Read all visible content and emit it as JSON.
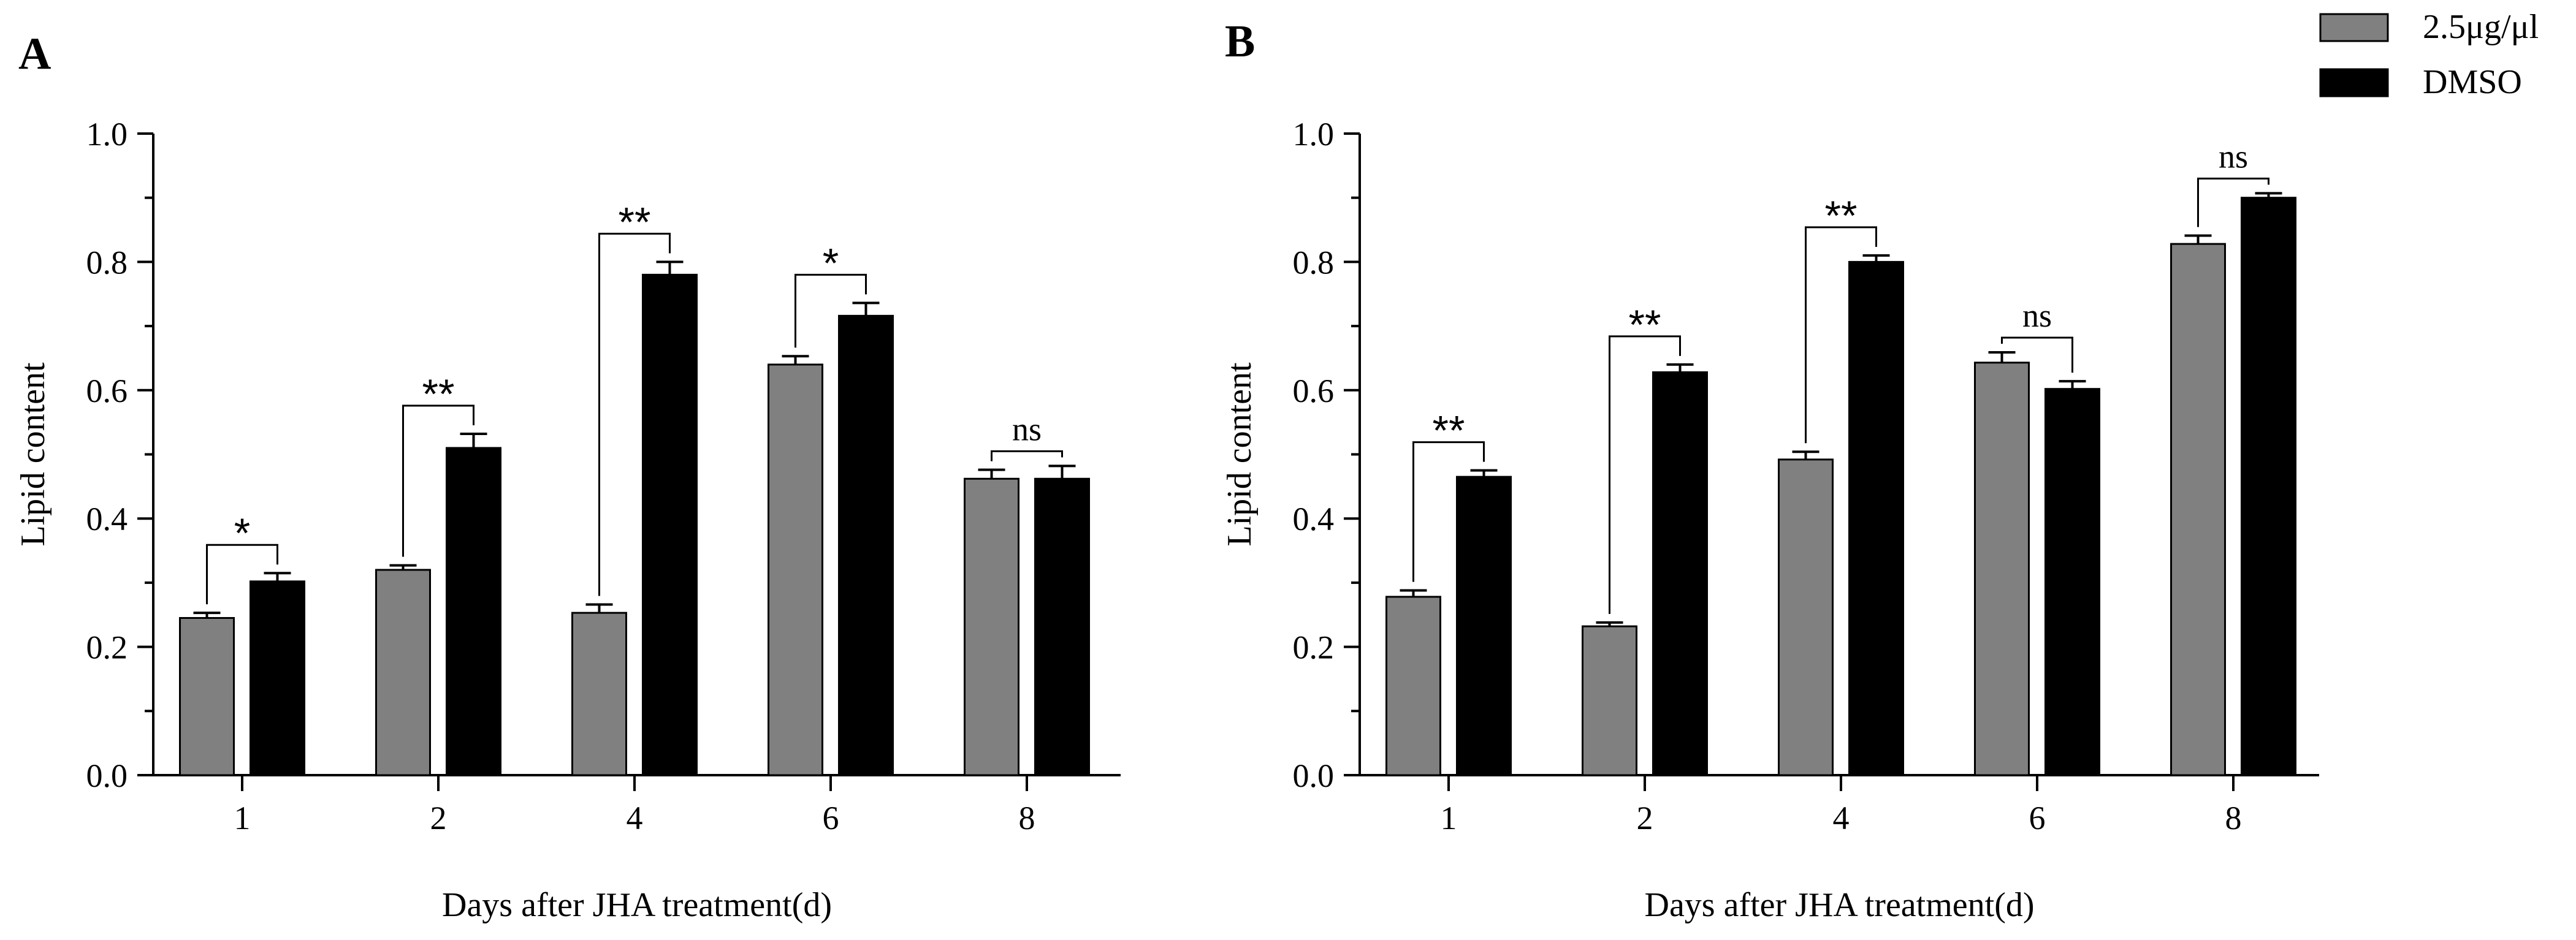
{
  "colors": {
    "treatment": "#808080",
    "control": "#000000",
    "axis": "#000000"
  },
  "legend": {
    "entries": [
      {
        "label": "2.5μg/μl",
        "color": "#808080"
      },
      {
        "label": "DMSO",
        "color": "#000000"
      }
    ],
    "placement": "top-right"
  },
  "chart_data": [
    {
      "type": "bar",
      "panel_label": "A",
      "title": "",
      "xlabel": "Days after JHA treatment(d)",
      "ylabel": "Lipid content",
      "ylim": [
        0,
        1.0
      ],
      "yticks": [
        "0.0",
        "0.2",
        "0.4",
        "0.6",
        "0.8",
        "1.0"
      ],
      "categories": [
        "1",
        "2",
        "4",
        "6",
        "8"
      ],
      "series": [
        {
          "name": "2.5μg/μl",
          "values": [
            0.245,
            0.32,
            0.253,
            0.64,
            0.462
          ],
          "errors": [
            0.008,
            0.007,
            0.013,
            0.013,
            0.014
          ]
        },
        {
          "name": "DMSO",
          "values": [
            0.302,
            0.51,
            0.78,
            0.716,
            0.462
          ],
          "errors": [
            0.013,
            0.022,
            0.02,
            0.02,
            0.02
          ]
        }
      ],
      "significance": [
        "*",
        "**",
        "**",
        "*",
        "ns"
      ]
    },
    {
      "type": "bar",
      "panel_label": "B",
      "title": "",
      "xlabel": "Days after JHA treatment(d)",
      "ylabel": "Lipid content",
      "ylim": [
        0,
        1.0
      ],
      "yticks": [
        "0.0",
        "0.2",
        "0.4",
        "0.6",
        "0.8",
        "1.0"
      ],
      "categories": [
        "1",
        "2",
        "4",
        "6",
        "8"
      ],
      "series": [
        {
          "name": "2.5μg/μl",
          "values": [
            0.278,
            0.232,
            0.492,
            0.643,
            0.828
          ],
          "errors": [
            0.01,
            0.006,
            0.012,
            0.016,
            0.013
          ]
        },
        {
          "name": "DMSO",
          "values": [
            0.465,
            0.628,
            0.8,
            0.602,
            0.9
          ],
          "errors": [
            0.01,
            0.012,
            0.01,
            0.012,
            0.007
          ]
        }
      ],
      "significance": [
        "**",
        "**",
        "**",
        "ns",
        "ns"
      ]
    }
  ]
}
